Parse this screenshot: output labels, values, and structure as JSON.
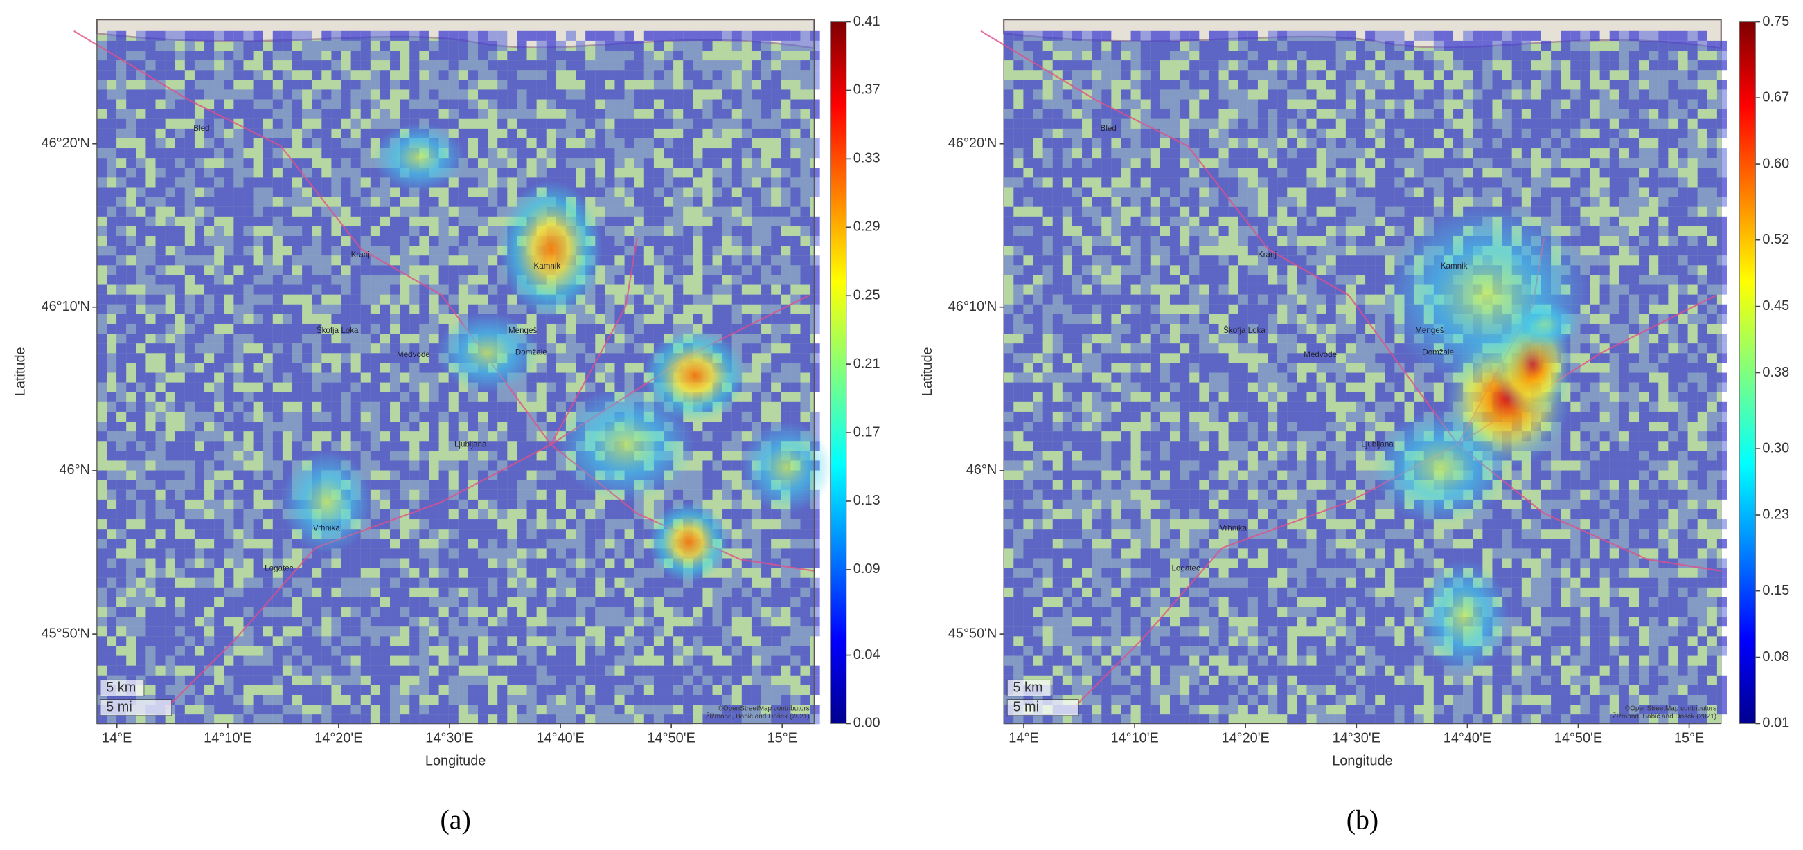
{
  "panels": [
    {
      "caption": "(a)",
      "xlabel": "Longitude",
      "ylabel": "Latitude",
      "xlim": [
        13.97,
        15.048
      ],
      "ylim": [
        45.742,
        46.46
      ],
      "xticks": [
        {
          "value": 14,
          "label": "14°E"
        },
        {
          "value": 14.1667,
          "label": "14°10'E"
        },
        {
          "value": 14.3333,
          "label": "14°20'E"
        },
        {
          "value": 14.5,
          "label": "14°30'E"
        },
        {
          "value": 14.6667,
          "label": "14°40'E"
        },
        {
          "value": 14.8333,
          "label": "14°50'E"
        },
        {
          "value": 15,
          "label": "15°E"
        }
      ],
      "yticks": [
        {
          "value": 45.8333,
          "label": "45°50'N"
        },
        {
          "value": 46,
          "label": "46°N"
        },
        {
          "value": 46.1667,
          "label": "46°10'N"
        },
        {
          "value": 46.3333,
          "label": "46°20'N"
        }
      ],
      "colorbar": {
        "clim": [
          0,
          0.41
        ],
        "ticks": [
          {
            "value": 0,
            "label": "0.00"
          },
          {
            "value": 0.04,
            "label": "0.04"
          },
          {
            "value": 0.09,
            "label": "0.09"
          },
          {
            "value": 0.13,
            "label": "0.13"
          },
          {
            "value": 0.17,
            "label": "0.17"
          },
          {
            "value": 0.21,
            "label": "0.21"
          },
          {
            "value": 0.25,
            "label": "0.25"
          },
          {
            "value": 0.29,
            "label": "0.29"
          },
          {
            "value": 0.33,
            "label": "0.33"
          },
          {
            "value": 0.37,
            "label": "0.37"
          },
          {
            "value": 0.41,
            "label": "0.41"
          }
        ]
      },
      "places": [
        "Bled",
        "Kranj",
        "Ljubljana",
        "Vrhnika",
        "Medvode",
        "Domžale",
        "Mengeš",
        "Kamnik",
        "Logatec",
        "Škofja Loka"
      ],
      "attribution": [
        "©OpenStreetMap contributors",
        "Žižmond, Babič and Došek (2021)"
      ],
      "scale": [
        "5 km",
        "5 mi"
      ]
    },
    {
      "caption": "(b)",
      "xlabel": "Longitude",
      "ylabel": "Latitude",
      "xlim": [
        13.97,
        15.048
      ],
      "ylim": [
        45.742,
        46.46
      ],
      "xticks": [
        {
          "value": 14,
          "label": "14°E"
        },
        {
          "value": 14.1667,
          "label": "14°10'E"
        },
        {
          "value": 14.3333,
          "label": "14°20'E"
        },
        {
          "value": 14.5,
          "label": "14°30'E"
        },
        {
          "value": 14.6667,
          "label": "14°40'E"
        },
        {
          "value": 14.8333,
          "label": "14°50'E"
        },
        {
          "value": 15,
          "label": "15°E"
        }
      ],
      "yticks": [
        {
          "value": 45.8333,
          "label": "45°50'N"
        },
        {
          "value": 46,
          "label": "46°N"
        },
        {
          "value": 46.1667,
          "label": "46°10'N"
        },
        {
          "value": 46.3333,
          "label": "46°20'N"
        }
      ],
      "colorbar": {
        "clim": [
          0.01,
          0.75
        ],
        "ticks": [
          {
            "value": 0.01,
            "label": "0.01"
          },
          {
            "value": 0.08,
            "label": "0.08"
          },
          {
            "value": 0.15,
            "label": "0.15"
          },
          {
            "value": 0.23,
            "label": "0.23"
          },
          {
            "value": 0.3,
            "label": "0.30"
          },
          {
            "value": 0.38,
            "label": "0.38"
          },
          {
            "value": 0.45,
            "label": "0.45"
          },
          {
            "value": 0.52,
            "label": "0.52"
          },
          {
            "value": 0.6,
            "label": "0.60"
          },
          {
            "value": 0.67,
            "label": "0.67"
          },
          {
            "value": 0.75,
            "label": "0.75"
          }
        ]
      },
      "places": [
        "Bled",
        "Kranj",
        "Ljubljana",
        "Vrhnika",
        "Medvode",
        "Domžale",
        "Mengeš",
        "Kamnik",
        "Logatec",
        "Škofja Loka"
      ],
      "attribution": [
        "©OpenStreetMap contributors",
        "Žižmond, Babič and Došek (2021)"
      ],
      "scale": [
        "5 km",
        "5 mi"
      ]
    }
  ]
}
